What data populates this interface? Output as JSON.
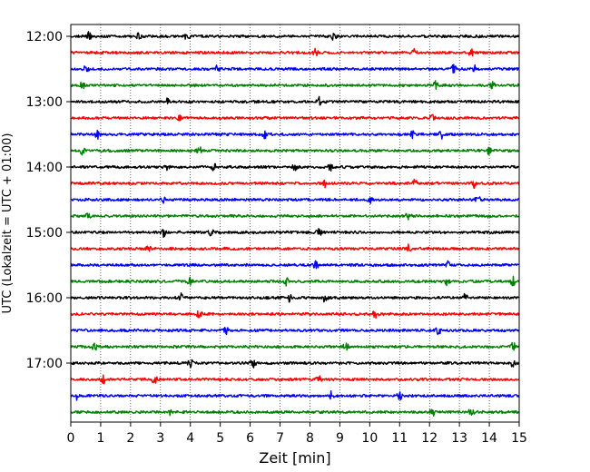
{
  "chart_data": {
    "type": "line",
    "title": "",
    "xlabel": "Zeit  [min]",
    "ylabel": "UTC (Lokalzeit = UTC + 01:00)",
    "xlim": [
      0,
      15
    ],
    "x_ticks": [
      "0",
      "1",
      "2",
      "3",
      "4",
      "5",
      "6",
      "7",
      "8",
      "9",
      "10",
      "11",
      "12",
      "13",
      "14",
      "15"
    ],
    "y_ticks": [
      "12:00",
      "13:00",
      "14:00",
      "15:00",
      "16:00",
      "17:00"
    ],
    "grid": "vertical dotted",
    "trace_interval_minutes": 15,
    "colors": [
      "#000000",
      "#ff0000",
      "#0000ff",
      "#008000"
    ],
    "traces": [
      {
        "start": "12:00",
        "color": "#000000",
        "events": [
          0.6,
          2.3,
          3.9,
          8.8
        ]
      },
      {
        "start": "12:15",
        "color": "#ff0000",
        "events": [
          8.2,
          11.5,
          13.4
        ]
      },
      {
        "start": "12:30",
        "color": "#0000ff",
        "events": [
          0.5,
          4.9,
          12.8,
          13.5
        ]
      },
      {
        "start": "12:45",
        "color": "#008000",
        "events": [
          0.4,
          12.2,
          14.1
        ]
      },
      {
        "start": "13:00",
        "color": "#000000",
        "events": [
          3.2,
          8.3
        ]
      },
      {
        "start": "13:15",
        "color": "#ff0000",
        "events": [
          3.6,
          12.1
        ]
      },
      {
        "start": "13:30",
        "color": "#0000ff",
        "events": [
          0.9,
          6.5,
          11.4,
          12.4
        ]
      },
      {
        "start": "13:45",
        "color": "#008000",
        "events": [
          0.4,
          4.3,
          14.0
        ]
      },
      {
        "start": "14:00",
        "color": "#000000",
        "events": [
          3.2,
          4.8,
          7.5,
          8.7
        ]
      },
      {
        "start": "14:15",
        "color": "#ff0000",
        "events": [
          8.5,
          11.5,
          13.5
        ]
      },
      {
        "start": "14:30",
        "color": "#0000ff",
        "events": [
          3.1,
          10.0,
          13.6
        ]
      },
      {
        "start": "14:45",
        "color": "#008000",
        "events": [
          0.6,
          11.3,
          14.0
        ]
      },
      {
        "start": "15:00",
        "color": "#000000",
        "events": [
          3.1,
          4.7,
          8.3
        ]
      },
      {
        "start": "15:15",
        "color": "#ff0000",
        "events": [
          2.6,
          11.3
        ]
      },
      {
        "start": "15:30",
        "color": "#0000ff",
        "events": [
          8.2,
          12.6
        ]
      },
      {
        "start": "15:45",
        "color": "#008000",
        "events": [
          4.0,
          7.2,
          12.6,
          14.8
        ]
      },
      {
        "start": "16:00",
        "color": "#000000",
        "events": [
          3.7,
          7.3,
          8.5,
          13.2
        ]
      },
      {
        "start": "16:15",
        "color": "#ff0000",
        "events": [
          4.3,
          10.2
        ]
      },
      {
        "start": "16:30",
        "color": "#0000ff",
        "events": [
          5.2,
          12.3
        ]
      },
      {
        "start": "16:45",
        "color": "#008000",
        "events": [
          0.8,
          9.2,
          14.8
        ]
      },
      {
        "start": "17:00",
        "color": "#000000",
        "events": [
          4.0,
          6.1,
          14.8
        ]
      },
      {
        "start": "17:15",
        "color": "#ff0000",
        "events": [
          1.1,
          2.8,
          8.3
        ]
      },
      {
        "start": "17:30",
        "color": "#0000ff",
        "events": [
          0.2,
          8.7,
          11.0
        ]
      },
      {
        "start": "17:45",
        "color": "#008000",
        "events": [
          3.3,
          12.1,
          13.4
        ]
      }
    ]
  }
}
